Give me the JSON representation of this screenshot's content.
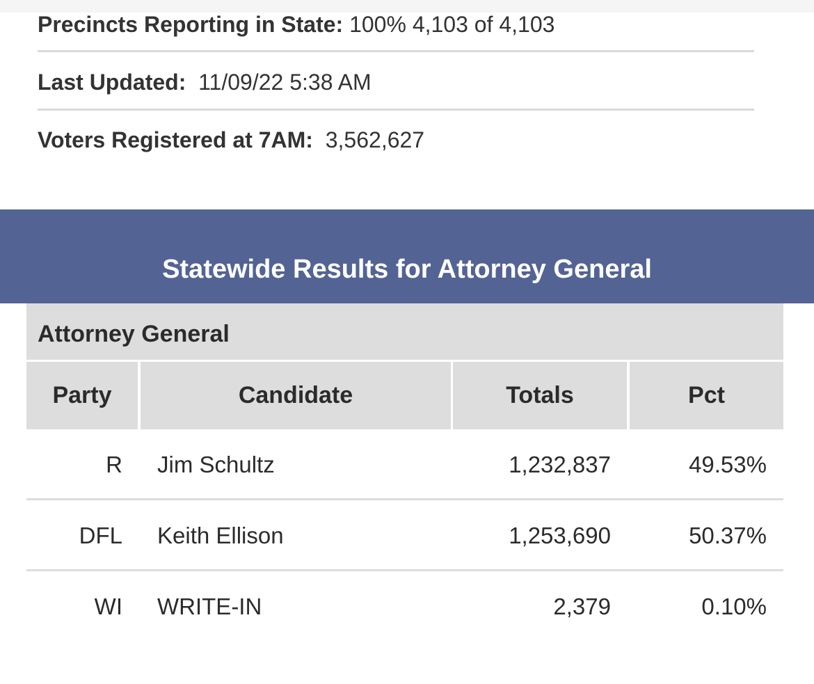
{
  "summary": {
    "precincts_label": "Precincts Reporting in State:",
    "precincts_pct": "100%",
    "precincts_count": "4,103 of 4,103",
    "updated_label": "Last Updated:",
    "updated_value": "11/09/22 5:38 AM",
    "registered_label": "Voters Registered at 7AM:",
    "registered_value": "3,562,627"
  },
  "banner": {
    "title": "Statewide Results for Attorney General"
  },
  "results": {
    "race_title": "Attorney General",
    "columns": [
      "Party",
      "Candidate",
      "Totals",
      "Pct"
    ],
    "rows": [
      {
        "party": "R",
        "candidate": "Jim Schultz",
        "totals": "1,232,837",
        "pct": "49.53%"
      },
      {
        "party": "DFL",
        "candidate": "Keith Ellison",
        "totals": "1,253,690",
        "pct": "50.37%"
      },
      {
        "party": "WI",
        "candidate": "WRITE-IN",
        "totals": "2,379",
        "pct": "0.10%"
      }
    ]
  },
  "colors": {
    "banner": "#536394",
    "header_bg": "#dddddd",
    "rule": "#d9d9d9"
  }
}
